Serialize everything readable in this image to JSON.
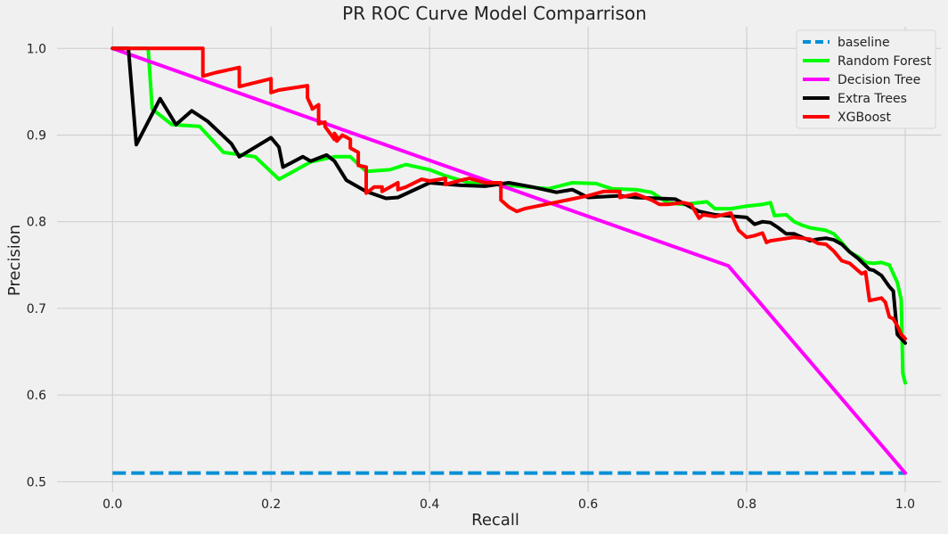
{
  "chart_data": {
    "type": "line",
    "title": "PR ROC Curve Model Comparrison",
    "xlabel": "Recall",
    "ylabel": "Precision",
    "xlim": [
      -0.07,
      1.045
    ],
    "ylim": [
      0.488,
      1.025
    ],
    "xticks": [
      0.0,
      0.2,
      0.4,
      0.6,
      0.8,
      1.0
    ],
    "xtick_labels": [
      "0.0",
      "0.2",
      "0.4",
      "0.6",
      "0.8",
      "1.0"
    ],
    "yticks": [
      0.5,
      0.6,
      0.7,
      0.8,
      0.9,
      1.0
    ],
    "ytick_labels": [
      "0.5",
      "0.6",
      "0.7",
      "0.8",
      "0.9",
      "1.0"
    ],
    "grid": true,
    "legend_position": "top-right",
    "series": [
      {
        "name": "baseline",
        "color": "#008fd5",
        "dash": true,
        "x": [
          0.0,
          1.0
        ],
        "y": [
          0.51,
          0.51
        ]
      },
      {
        "name": "Random Forest",
        "color": "#00ff00",
        "x": [
          0.0,
          0.045,
          0.05,
          0.075,
          0.11,
          0.14,
          0.18,
          0.21,
          0.25,
          0.28,
          0.3,
          0.32,
          0.35,
          0.37,
          0.4,
          0.42,
          0.45,
          0.5,
          0.55,
          0.58,
          0.61,
          0.63,
          0.66,
          0.68,
          0.7,
          0.72,
          0.75,
          0.76,
          0.78,
          0.8,
          0.82,
          0.83,
          0.835,
          0.85,
          0.86,
          0.87,
          0.88,
          0.9,
          0.91,
          0.92,
          0.93,
          0.94,
          0.95,
          0.96,
          0.97,
          0.98,
          0.985,
          0.99,
          0.995,
          0.997,
          1.0
        ],
        "y": [
          1.0,
          1.0,
          0.93,
          0.912,
          0.91,
          0.88,
          0.875,
          0.849,
          0.869,
          0.875,
          0.875,
          0.858,
          0.86,
          0.866,
          0.86,
          0.853,
          0.845,
          0.842,
          0.838,
          0.845,
          0.844,
          0.838,
          0.837,
          0.834,
          0.822,
          0.82,
          0.823,
          0.815,
          0.815,
          0.818,
          0.82,
          0.822,
          0.807,
          0.808,
          0.8,
          0.796,
          0.793,
          0.79,
          0.786,
          0.776,
          0.765,
          0.76,
          0.753,
          0.752,
          0.753,
          0.75,
          0.74,
          0.73,
          0.71,
          0.625,
          0.614
        ]
      },
      {
        "name": "Decision Tree",
        "color": "#ff00ff",
        "x": [
          0.0,
          0.777,
          1.0
        ],
        "y": [
          1.0,
          0.749,
          0.51
        ]
      },
      {
        "name": "Extra Trees",
        "color": "#000000",
        "x": [
          0.0,
          0.02,
          0.03,
          0.06,
          0.08,
          0.1,
          0.12,
          0.15,
          0.16,
          0.2,
          0.21,
          0.215,
          0.24,
          0.25,
          0.27,
          0.28,
          0.295,
          0.32,
          0.345,
          0.36,
          0.4,
          0.44,
          0.47,
          0.5,
          0.53,
          0.56,
          0.58,
          0.6,
          0.64,
          0.66,
          0.71,
          0.74,
          0.76,
          0.8,
          0.81,
          0.82,
          0.83,
          0.84,
          0.85,
          0.86,
          0.88,
          0.89,
          0.9,
          0.91,
          0.92,
          0.93,
          0.94,
          0.955,
          0.96,
          0.97,
          0.98,
          0.985,
          0.987,
          0.99,
          0.995,
          1.0
        ],
        "y": [
          1.0,
          1.0,
          0.889,
          0.942,
          0.912,
          0.928,
          0.916,
          0.89,
          0.875,
          0.897,
          0.886,
          0.863,
          0.875,
          0.87,
          0.877,
          0.87,
          0.848,
          0.835,
          0.827,
          0.828,
          0.845,
          0.842,
          0.841,
          0.845,
          0.84,
          0.834,
          0.837,
          0.828,
          0.83,
          0.828,
          0.826,
          0.812,
          0.808,
          0.805,
          0.797,
          0.8,
          0.799,
          0.793,
          0.786,
          0.786,
          0.778,
          0.78,
          0.781,
          0.779,
          0.774,
          0.765,
          0.758,
          0.745,
          0.744,
          0.738,
          0.725,
          0.72,
          0.7,
          0.67,
          0.665,
          0.66
        ]
      },
      {
        "name": "XGBoost",
        "color": "#ff0000",
        "x": [
          0.0,
          0.114,
          0.114,
          0.13,
          0.16,
          0.16,
          0.2,
          0.2,
          0.21,
          0.246,
          0.246,
          0.252,
          0.252,
          0.26,
          0.26,
          0.268,
          0.268,
          0.28,
          0.28,
          0.283,
          0.283,
          0.29,
          0.3,
          0.3,
          0.31,
          0.31,
          0.32,
          0.32,
          0.33,
          0.34,
          0.34,
          0.36,
          0.36,
          0.37,
          0.39,
          0.4,
          0.42,
          0.42,
          0.44,
          0.45,
          0.47,
          0.49,
          0.49,
          0.5,
          0.51,
          0.52,
          0.6,
          0.62,
          0.64,
          0.64,
          0.66,
          0.68,
          0.69,
          0.7,
          0.72,
          0.73,
          0.74,
          0.745,
          0.76,
          0.78,
          0.79,
          0.8,
          0.81,
          0.82,
          0.825,
          0.83,
          0.86,
          0.88,
          0.89,
          0.9,
          0.91,
          0.92,
          0.93,
          0.945,
          0.95,
          0.955,
          0.97,
          0.975,
          0.98,
          0.985,
          0.99,
          0.995,
          1.0
        ],
        "y": [
          1.0,
          1.0,
          0.968,
          0.972,
          0.978,
          0.956,
          0.965,
          0.949,
          0.952,
          0.957,
          0.943,
          0.931,
          0.93,
          0.935,
          0.913,
          0.915,
          0.91,
          0.895,
          0.902,
          0.898,
          0.893,
          0.9,
          0.895,
          0.885,
          0.88,
          0.865,
          0.863,
          0.833,
          0.84,
          0.84,
          0.835,
          0.845,
          0.837,
          0.84,
          0.849,
          0.847,
          0.85,
          0.843,
          0.848,
          0.85,
          0.845,
          0.845,
          0.825,
          0.817,
          0.812,
          0.815,
          0.83,
          0.835,
          0.835,
          0.828,
          0.832,
          0.825,
          0.82,
          0.82,
          0.822,
          0.82,
          0.804,
          0.808,
          0.806,
          0.81,
          0.79,
          0.782,
          0.784,
          0.787,
          0.776,
          0.778,
          0.782,
          0.78,
          0.775,
          0.774,
          0.766,
          0.755,
          0.752,
          0.74,
          0.742,
          0.709,
          0.712,
          0.707,
          0.69,
          0.688,
          0.68,
          0.67,
          0.665
        ]
      }
    ]
  }
}
